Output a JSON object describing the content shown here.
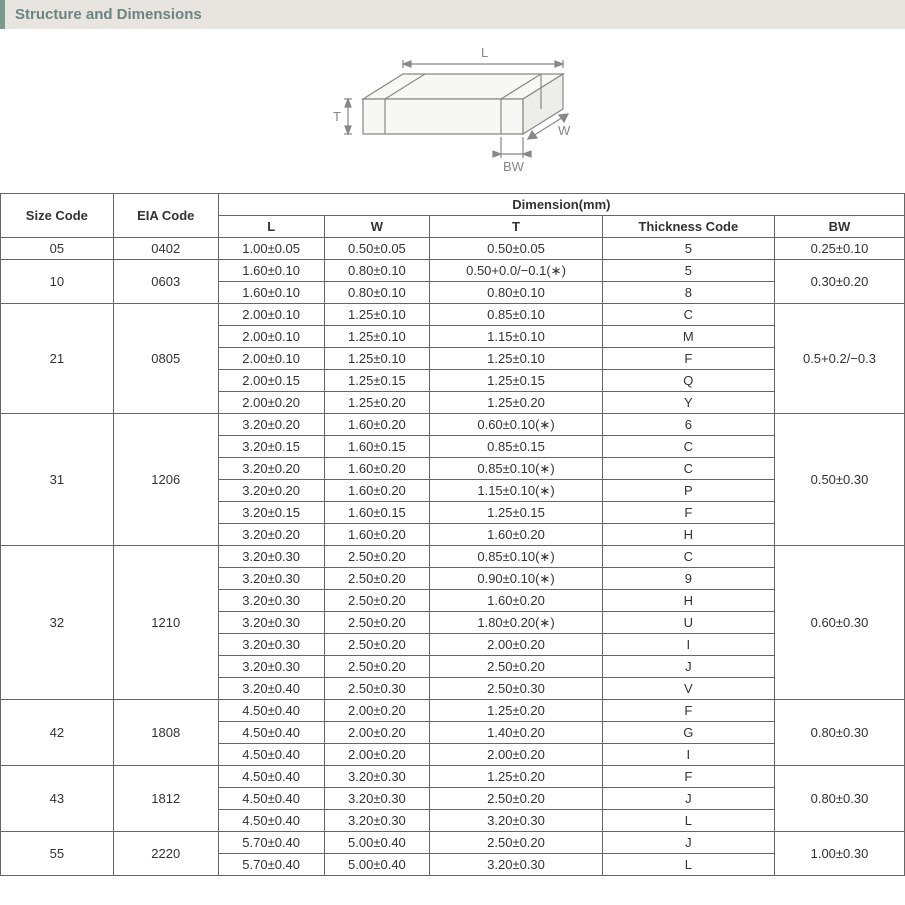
{
  "title": "Structure and Dimensions",
  "diagram": {
    "labels": {
      "L": "L",
      "W": "W",
      "T": "T",
      "BW": "BW"
    },
    "stroke": "#888888",
    "fill": "#f7f7f5",
    "side_fill": "#ededea",
    "text_color": "#888888"
  },
  "table": {
    "headers": {
      "size_code": "Size Code",
      "eia_code": "EIA Code",
      "dimension": "Dimension(mm)",
      "L": "L",
      "W": "W",
      "T": "T",
      "thickness_code": "Thickness Code",
      "BW": "BW"
    },
    "groups": [
      {
        "size_code": "05",
        "eia_code": "0402",
        "bw": "0.25±0.10",
        "rows": [
          {
            "L": "1.00±0.05",
            "W": "0.50±0.05",
            "T": "0.50±0.05",
            "tc": "5"
          }
        ]
      },
      {
        "size_code": "10",
        "eia_code": "0603",
        "bw": "0.30±0.20",
        "rows": [
          {
            "L": "1.60±0.10",
            "W": "0.80±0.10",
            "T": "0.50+0.0/−0.1(∗)",
            "tc": "5"
          },
          {
            "L": "1.60±0.10",
            "W": "0.80±0.10",
            "T": "0.80±0.10",
            "tc": "8"
          }
        ]
      },
      {
        "size_code": "21",
        "eia_code": "0805",
        "bw": "0.5+0.2/−0.3",
        "rows": [
          {
            "L": "2.00±0.10",
            "W": "1.25±0.10",
            "T": "0.85±0.10",
            "tc": "C"
          },
          {
            "L": "2.00±0.10",
            "W": "1.25±0.10",
            "T": "1.15±0.10",
            "tc": "M"
          },
          {
            "L": "2.00±0.10",
            "W": "1.25±0.10",
            "T": "1.25±0.10",
            "tc": "F"
          },
          {
            "L": "2.00±0.15",
            "W": "1.25±0.15",
            "T": "1.25±0.15",
            "tc": "Q"
          },
          {
            "L": "2.00±0.20",
            "W": "1.25±0.20",
            "T": "1.25±0.20",
            "tc": "Y"
          }
        ]
      },
      {
        "size_code": "31",
        "eia_code": "1206",
        "bw": "0.50±0.30",
        "rows": [
          {
            "L": "3.20±0.20",
            "W": "1.60±0.20",
            "T": "0.60±0.10(∗)",
            "tc": "6"
          },
          {
            "L": "3.20±0.15",
            "W": "1.60±0.15",
            "T": "0.85±0.15",
            "tc": "C"
          },
          {
            "L": "3.20±0.20",
            "W": "1.60±0.20",
            "T": "0.85±0.10(∗)",
            "tc": "C"
          },
          {
            "L": "3.20±0.20",
            "W": "1.60±0.20",
            "T": "1.15±0.10(∗)",
            "tc": "P"
          },
          {
            "L": "3.20±0.15",
            "W": "1.60±0.15",
            "T": "1.25±0.15",
            "tc": "F"
          },
          {
            "L": "3.20±0.20",
            "W": "1.60±0.20",
            "T": "1.60±0.20",
            "tc": "H"
          }
        ]
      },
      {
        "size_code": "32",
        "eia_code": "1210",
        "bw": "0.60±0.30",
        "rows": [
          {
            "L": "3.20±0.30",
            "W": "2.50±0.20",
            "T": "0.85±0.10(∗)",
            "tc": "C"
          },
          {
            "L": "3.20±0.30",
            "W": "2.50±0.20",
            "T": "0.90±0.10(∗)",
            "tc": "9"
          },
          {
            "L": "3.20±0.30",
            "W": "2.50±0.20",
            "T": "1.60±0.20",
            "tc": "H"
          },
          {
            "L": "3.20±0.30",
            "W": "2.50±0.20",
            "T": "1.80±0.20(∗)",
            "tc": "U"
          },
          {
            "L": "3.20±0.30",
            "W": "2.50±0.20",
            "T": "2.00±0.20",
            "tc": "I"
          },
          {
            "L": "3.20±0.30",
            "W": "2.50±0.20",
            "T": "2.50±0.20",
            "tc": "J"
          },
          {
            "L": "3.20±0.40",
            "W": "2.50±0.30",
            "T": "2.50±0.30",
            "tc": "V"
          }
        ]
      },
      {
        "size_code": "42",
        "eia_code": "1808",
        "bw": "0.80±0.30",
        "rows": [
          {
            "L": "4.50±0.40",
            "W": "2.00±0.20",
            "T": "1.25±0.20",
            "tc": "F"
          },
          {
            "L": "4.50±0.40",
            "W": "2.00±0.20",
            "T": "1.40±0.20",
            "tc": "G"
          },
          {
            "L": "4.50±0.40",
            "W": "2.00±0.20",
            "T": "2.00±0.20",
            "tc": "I"
          }
        ]
      },
      {
        "size_code": "43",
        "eia_code": "1812",
        "bw": "0.80±0.30",
        "rows": [
          {
            "L": "4.50±0.40",
            "W": "3.20±0.30",
            "T": "1.25±0.20",
            "tc": "F"
          },
          {
            "L": "4.50±0.40",
            "W": "3.20±0.30",
            "T": "2.50±0.20",
            "tc": "J"
          },
          {
            "L": "4.50±0.40",
            "W": "3.20±0.30",
            "T": "3.20±0.30",
            "tc": "L"
          }
        ]
      },
      {
        "size_code": "55",
        "eia_code": "2220",
        "bw": "1.00±0.30",
        "rows": [
          {
            "L": "5.70±0.40",
            "W": "5.00±0.40",
            "T": "2.50±0.20",
            "tc": "J"
          },
          {
            "L": "5.70±0.40",
            "W": "5.00±0.40",
            "T": "3.20±0.30",
            "tc": "L"
          }
        ]
      }
    ]
  }
}
